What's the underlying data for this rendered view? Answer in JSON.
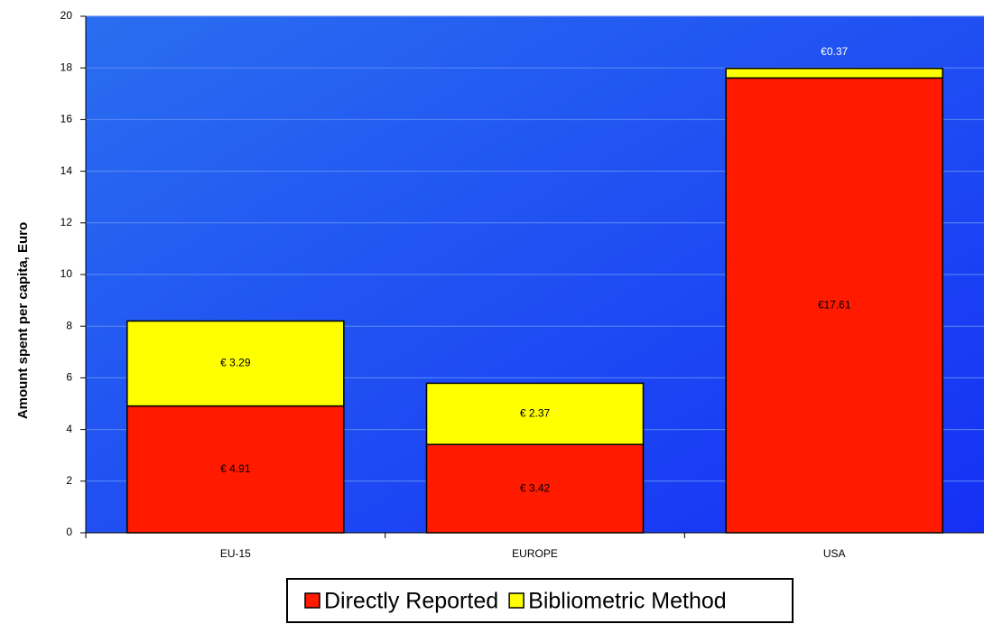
{
  "chart_data": {
    "type": "stacked_bar",
    "y_label": "Amount spent per capita, Euro",
    "categories": [
      "EU-15",
      "EUROPE",
      "USA"
    ],
    "series": [
      {
        "name": "Directly Reported",
        "color": "#ff1a00",
        "values": [
          4.91,
          3.42,
          17.61
        ],
        "value_labels": [
          "€ 4.91",
          "€ 3.42",
          "€17.61"
        ]
      },
      {
        "name": "Bibliometric Method",
        "color": "#ffff00",
        "values": [
          3.29,
          2.37,
          0.37
        ],
        "value_labels": [
          "€ 3.29",
          "€ 2.37",
          "€0.37"
        ]
      }
    ],
    "ylim": [
      0,
      20
    ],
    "yticks": [
      0,
      2,
      4,
      6,
      8,
      10,
      12,
      14,
      16,
      18,
      20
    ],
    "grid": true,
    "legend": "bottom"
  }
}
